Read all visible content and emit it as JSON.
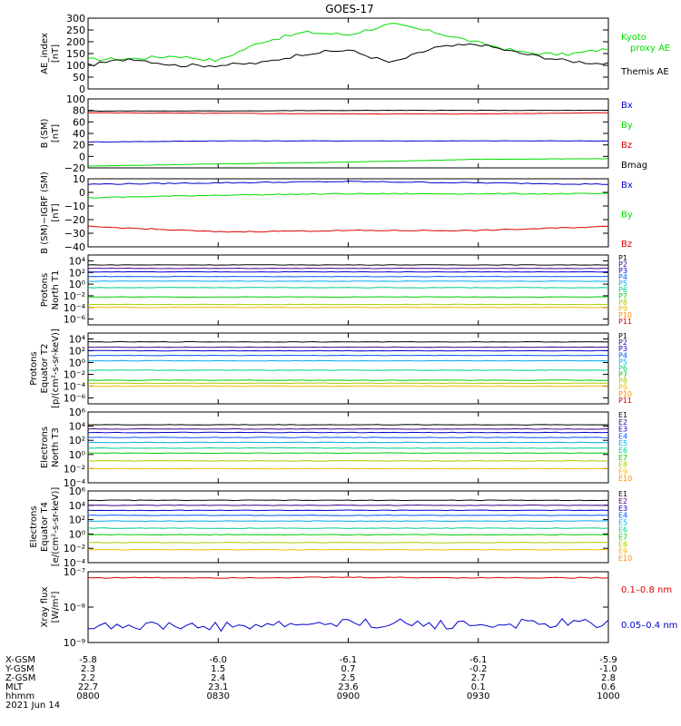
{
  "title": "GOES-17",
  "colors": {
    "black": "#000000",
    "red": "#dd0000",
    "green": "#00dd00",
    "blue": "#0000cc",
    "p": [
      "#000000",
      "#440088",
      "#0000cc",
      "#0055ff",
      "#00aaee",
      "#00cc88",
      "#00cc00",
      "#aacc00",
      "#eebb00",
      "#ff8800",
      "#cc0000",
      "#ee0000"
    ]
  },
  "time_axis": {
    "row_labels": [
      "X-GSM",
      "Y-GSM",
      "Z-GSM",
      "MLT",
      "hhmm",
      "2021 Jun 14"
    ],
    "ticks": [
      {
        "xgsm": "-5.8",
        "ygsm": "2.3",
        "zgsm": "2.2",
        "mlt": "22.7",
        "hhmm": "0800"
      },
      {
        "xgsm": "-6.0",
        "ygsm": "1.5",
        "zgsm": "2.4",
        "mlt": "23.1",
        "hhmm": "0830"
      },
      {
        "xgsm": "-6.1",
        "ygsm": "0.7",
        "zgsm": "2.5",
        "mlt": "23.6",
        "hhmm": "0900"
      },
      {
        "xgsm": "-6.1",
        "ygsm": "-0.2",
        "zgsm": "2.7",
        "mlt": "0.1",
        "hhmm": "0930"
      },
      {
        "xgsm": "-5.9",
        "ygsm": "-1.0",
        "zgsm": "2.8",
        "mlt": "0.6",
        "hhmm": "1000"
      }
    ]
  },
  "chart_data": [
    {
      "type": "line",
      "id": "ae",
      "ylabel": [
        "AE_index",
        "[nT]"
      ],
      "ylim": [
        0,
        300
      ],
      "yticks": [
        "300",
        "250",
        "200",
        "150",
        "100",
        "50",
        "0"
      ],
      "ytick_values": [
        300,
        250,
        200,
        150,
        100,
        50,
        0
      ],
      "x": [
        "0800",
        "0810",
        "0820",
        "0830",
        "0840",
        "0850",
        "0900",
        "0910",
        "0920",
        "0930",
        "0940",
        "0950",
        "1000"
      ],
      "series": [
        {
          "name": "Kyoto proxy AE",
          "color": "green",
          "values": [
            125,
            128,
            140,
            120,
            200,
            240,
            230,
            275,
            240,
            195,
            155,
            145,
            170
          ]
        },
        {
          "name": "Themis AE",
          "color": "black",
          "values": [
            100,
            130,
            100,
            100,
            110,
            150,
            165,
            110,
            175,
            190,
            150,
            120,
            105
          ]
        }
      ],
      "legend": [
        "Kyoto",
        "proxy AE",
        "Themis AE"
      ]
    },
    {
      "type": "line",
      "id": "bsm",
      "ylabel": [
        "B (SM)",
        "[nT]"
      ],
      "ylim": [
        -20,
        100
      ],
      "yticks": [
        "100",
        "80",
        "60",
        "40",
        "20",
        "0",
        "−20"
      ],
      "ytick_values": [
        100,
        80,
        60,
        40,
        20,
        0,
        -20
      ],
      "x": [
        "0800",
        "0830",
        "0900",
        "0930",
        "1000"
      ],
      "series": [
        {
          "name": "Bx",
          "color": "blue",
          "values": [
            25,
            27,
            27,
            27,
            27
          ]
        },
        {
          "name": "By",
          "color": "green",
          "values": [
            -17,
            -13,
            -10,
            -5,
            -4
          ]
        },
        {
          "name": "Bz",
          "color": "red",
          "values": [
            76,
            75,
            74,
            74,
            76
          ]
        },
        {
          "name": "Bmag",
          "color": "black",
          "values": [
            79,
            79,
            80,
            80,
            80
          ]
        }
      ],
      "legend": [
        "Bx",
        "By",
        "Bz",
        "Bmag"
      ]
    },
    {
      "type": "line",
      "id": "bigrf",
      "ylabel": [
        "B (SM)−IGRF (SM)",
        "[nT]"
      ],
      "ylim": [
        -40,
        10
      ],
      "yticks": [
        "10",
        "0",
        "−10",
        "−20",
        "−30",
        "−40"
      ],
      "ytick_values": [
        10,
        0,
        -10,
        -20,
        -30,
        -40
      ],
      "x": [
        "0800",
        "0830",
        "0900",
        "0930",
        "1000"
      ],
      "series": [
        {
          "name": "Bx",
          "color": "blue",
          "values": [
            6,
            7,
            8,
            7,
            6
          ]
        },
        {
          "name": "By",
          "color": "green",
          "values": [
            -4,
            -2,
            -1,
            -1,
            -1
          ]
        },
        {
          "name": "Bz",
          "color": "red",
          "values": [
            -25,
            -29,
            -28,
            -28,
            -25
          ]
        }
      ],
      "legend": [
        "Bx",
        "By",
        "Bz"
      ]
    },
    {
      "type": "line",
      "id": "pn",
      "log": true,
      "ylabel": [
        "Protons",
        "North T1"
      ],
      "ylim": [
        -7,
        5
      ],
      "yticks": [
        "10⁴",
        "10²",
        "10⁰",
        "10⁻²",
        "10⁻⁴",
        "10⁻⁶"
      ],
      "ytick_values": [
        4,
        2,
        0,
        -2,
        -4,
        -6
      ],
      "series": [
        {
          "name": "P1",
          "values": [
            3.3
          ]
        },
        {
          "name": "P2",
          "values": [
            2.7
          ]
        },
        {
          "name": "P3",
          "values": [
            2.1
          ]
        },
        {
          "name": "P4",
          "values": [
            1.3
          ]
        },
        {
          "name": "P5",
          "values": [
            0.5
          ]
        },
        {
          "name": "P6",
          "values": [
            -0.6
          ]
        },
        {
          "name": "P7",
          "values": [
            -2.2
          ]
        },
        {
          "name": "P8",
          "values": [
            -3.5
          ]
        },
        {
          "name": "P9",
          "values": [
            -4.0
          ]
        },
        {
          "name": "P10",
          "values": []
        },
        {
          "name": "P11",
          "values": []
        }
      ],
      "legend": [
        "P1",
        "P2",
        "P3",
        "P4",
        "P5",
        "P6",
        "P7",
        "P8",
        "P9",
        "P10",
        "P11"
      ]
    },
    {
      "type": "line",
      "id": "pe",
      "log": true,
      "ylabel": [
        "Protons",
        "Equator T2",
        "[p/(cm²-s-sr-keV)]"
      ],
      "ylim": [
        -7,
        5
      ],
      "yticks": [
        "10⁴",
        "10²",
        "10⁰",
        "10⁻²",
        "10⁻⁴",
        "10⁻⁶"
      ],
      "ytick_values": [
        4,
        2,
        0,
        -2,
        -4,
        -6
      ],
      "series": [
        {
          "name": "P1",
          "values": [
            3.5
          ]
        },
        {
          "name": "P2",
          "values": [
            2.6
          ]
        },
        {
          "name": "P3",
          "values": [
            2.0
          ]
        },
        {
          "name": "P4",
          "values": [
            1.2
          ]
        },
        {
          "name": "P5",
          "values": [
            0.3
          ]
        },
        {
          "name": "P6",
          "values": [
            -1.3
          ]
        },
        {
          "name": "P7",
          "values": [
            -3.0
          ]
        },
        {
          "name": "P8",
          "values": [
            -3.5
          ]
        },
        {
          "name": "P9",
          "values": [
            -4.0
          ]
        },
        {
          "name": "P10",
          "values": []
        },
        {
          "name": "P11",
          "values": []
        }
      ],
      "legend": [
        "P1",
        "P2",
        "P3",
        "P4",
        "P5",
        "P6",
        "P7",
        "P8",
        "P9",
        "P10",
        "P11"
      ]
    },
    {
      "type": "line",
      "id": "en",
      "log": true,
      "ylabel": [
        "Electrons",
        "North T3"
      ],
      "ylim": [
        -4,
        6
      ],
      "yticks": [
        "10⁶",
        "10⁴",
        "10²",
        "10⁰",
        "10⁻²",
        "10⁻⁴"
      ],
      "ytick_values": [
        6,
        4,
        2,
        0,
        -2,
        -4
      ],
      "series": [
        {
          "name": "E1",
          "values": [
            4.2
          ]
        },
        {
          "name": "E2",
          "values": [
            3.6
          ]
        },
        {
          "name": "E3",
          "values": [
            3.1
          ]
        },
        {
          "name": "E4",
          "values": [
            2.4
          ]
        },
        {
          "name": "E5",
          "values": [
            1.7
          ]
        },
        {
          "name": "E6",
          "values": [
            0.9
          ]
        },
        {
          "name": "E7",
          "values": [
            0.2
          ]
        },
        {
          "name": "E8",
          "values": [
            -0.9
          ]
        },
        {
          "name": "E9",
          "values": [
            -2.0
          ]
        },
        {
          "name": "E10",
          "values": []
        }
      ],
      "legend": [
        "E1",
        "E2",
        "E3",
        "E4",
        "E5",
        "E6",
        "E7",
        "E8",
        "E9",
        "E10"
      ]
    },
    {
      "type": "line",
      "id": "ee",
      "log": true,
      "ylabel": [
        "Electrons",
        "Equator T4",
        "[e/(cm²-s-sr-keV)]"
      ],
      "ylim": [
        -4,
        6
      ],
      "yticks": [
        "10⁶",
        "10⁴",
        "10²",
        "10⁰",
        "10⁻²",
        "10⁻⁴"
      ],
      "ytick_values": [
        6,
        4,
        2,
        0,
        -2,
        -4
      ],
      "series": [
        {
          "name": "E1",
          "values": [
            4.7
          ]
        },
        {
          "name": "E2",
          "values": [
            4.0
          ]
        },
        {
          "name": "E3",
          "values": [
            3.3
          ]
        },
        {
          "name": "E4",
          "values": [
            2.6
          ]
        },
        {
          "name": "E5",
          "values": [
            1.8
          ]
        },
        {
          "name": "E6",
          "values": [
            0.8
          ]
        },
        {
          "name": "E7",
          "values": [
            -0.1
          ]
        },
        {
          "name": "E8",
          "values": [
            -1.2
          ]
        },
        {
          "name": "E9",
          "values": [
            -2.2
          ]
        },
        {
          "name": "E10",
          "values": []
        }
      ],
      "legend": [
        "E1",
        "E2",
        "E3",
        "E4",
        "E5",
        "E6",
        "E7",
        "E8",
        "E9",
        "E10"
      ]
    },
    {
      "type": "line",
      "id": "xray",
      "log": true,
      "ylabel": [
        "Xray flux",
        "[W/m²]"
      ],
      "ylim": [
        -9,
        -7
      ],
      "yticks": [
        "10⁻⁷",
        "10⁻⁸",
        "10⁻⁹"
      ],
      "ytick_values": [
        -7,
        -8,
        -9
      ],
      "x": [
        "0800",
        "0830",
        "0900",
        "0930",
        "1000"
      ],
      "series": [
        {
          "name": "0.1–0.8 nm",
          "color": "red",
          "values": [
            -7.17,
            -7.17,
            -7.16,
            -7.17,
            -7.17
          ]
        },
        {
          "name": "0.05–0.4 nm",
          "color": "blue",
          "values": [
            -8.5,
            -8.55,
            -8.45,
            -8.5,
            -8.45
          ]
        }
      ],
      "legend": [
        "0.1–0.8 nm",
        "0.05–0.4 nm"
      ]
    }
  ]
}
